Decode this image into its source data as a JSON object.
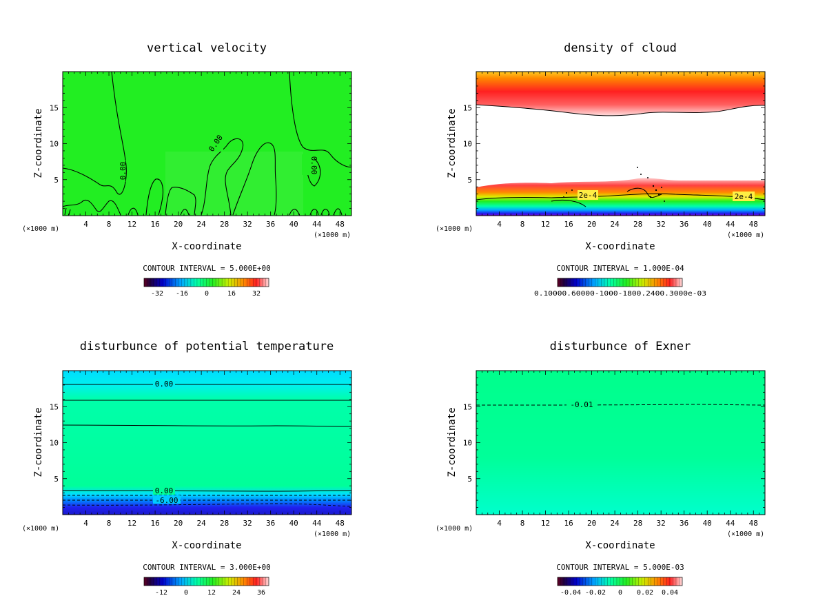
{
  "chart_data": [
    {
      "type": "heatmap",
      "title": "vertical velocity",
      "xlabel": "X-coordinate",
      "ylabel": "Z-coordinate",
      "x_unit": "(×1000 m)",
      "x_unit_right": "(×1000 m)",
      "xlim": [
        0,
        50
      ],
      "ylim": [
        0,
        20
      ],
      "x_ticks": [
        "4",
        "8",
        "12",
        "16",
        "20",
        "24",
        "28",
        "32",
        "36",
        "40",
        "44",
        "48"
      ],
      "y_ticks": [
        "5",
        "10",
        "15"
      ],
      "contour_interval": "CONTOUR INTERVAL = 5.000E+00",
      "colorbar_labels": [
        "-32",
        "-16",
        "0",
        "16",
        "32"
      ],
      "contour_labels": [
        "0.00",
        "0.00",
        "0.00"
      ],
      "field_color": "#22ee22"
    },
    {
      "type": "heatmap",
      "title": "density of cloud",
      "xlabel": "X-coordinate",
      "ylabel": "Z-coordinate",
      "x_unit": "(×1000 m)",
      "x_unit_right": "(×1000 m)",
      "xlim": [
        0,
        50
      ],
      "ylim": [
        0,
        20
      ],
      "x_ticks": [
        "4",
        "8",
        "12",
        "16",
        "20",
        "24",
        "28",
        "32",
        "36",
        "40",
        "44",
        "48"
      ],
      "y_ticks": [
        "5",
        "10",
        "15"
      ],
      "contour_interval": "CONTOUR INTERVAL = 1.000E-04",
      "colorbar_text": "0.10000.60000-1000-1800.2400.3000e-03",
      "contour_labels": [
        "2e-4",
        "2e-4"
      ],
      "upper_cloud_base_km": 14.5,
      "lower_cloud_top_km": 4.5
    },
    {
      "type": "heatmap",
      "title": "disturbunce of potential temperature",
      "xlabel": "X-coordinate",
      "ylabel": "Z-coordinate",
      "x_unit": "(×1000 m)",
      "x_unit_right": "(×1000 m)",
      "xlim": [
        0,
        50
      ],
      "ylim": [
        0,
        20
      ],
      "x_ticks": [
        "4",
        "8",
        "12",
        "16",
        "20",
        "24",
        "28",
        "32",
        "36",
        "40",
        "44",
        "48"
      ],
      "y_ticks": [
        "5",
        "10",
        "15"
      ],
      "contour_interval": "CONTOUR INTERVAL = 3.000E+00",
      "colorbar_labels": [
        "-12",
        "0",
        "12",
        "24",
        "36"
      ],
      "contour_labels": [
        "0.00",
        "0.00",
        "-6.00"
      ]
    },
    {
      "type": "heatmap",
      "title": "disturbunce of Exner",
      "xlabel": "X-coordinate",
      "ylabel": "Z-coordinate",
      "x_unit": "(×1000 m)",
      "x_unit_right": "(×1000 m)",
      "xlim": [
        0,
        50
      ],
      "ylim": [
        0,
        20
      ],
      "x_ticks": [
        "4",
        "8",
        "12",
        "16",
        "20",
        "24",
        "28",
        "32",
        "36",
        "40",
        "44",
        "48"
      ],
      "y_ticks": [
        "5",
        "10",
        "15"
      ],
      "contour_interval": "CONTOUR INTERVAL = 5.000E-03",
      "colorbar_labels": [
        "-0.04",
        "-0.02",
        "0",
        "0.02",
        "0.04"
      ],
      "contour_labels": [
        "-0.01"
      ]
    }
  ],
  "colors": {
    "green": "#22ee22",
    "cyan_green": "#00ff99",
    "red": "#ff2020",
    "blue": "#2020ee"
  }
}
